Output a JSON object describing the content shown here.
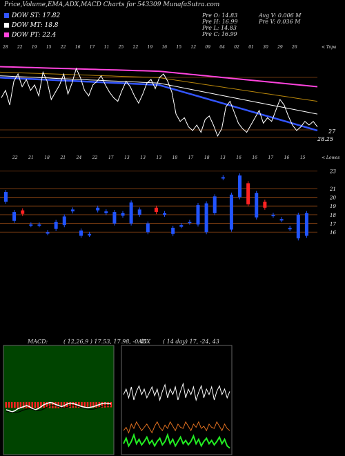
{
  "title": "Price,Volume,EMA,ADX,MACD Charts for 543309 MunafaSutra.com",
  "legend": [
    {
      "label": "DOW ST: 17.82",
      "color": "#3355ff"
    },
    {
      "label": "DOW MT: 18.8",
      "color": "#ffffff"
    },
    {
      "label": "DOW PT: 22.4",
      "color": "#ff44dd"
    }
  ],
  "quote": {
    "prev_open": "Pre   O: 14.83",
    "prev_high": "Pre   H: 16.99",
    "prev_low": "Pre   L: 14.83",
    "prev_close": "Pre   C: 16.99",
    "avg_volume": "Avg V: 0.006   M",
    "prev_volume": "Pre   V: 0.036   M"
  },
  "macd": {
    "label": "MACD:",
    "values": "( 12,26,9 ) 17.53, 17.98, -0.45"
  },
  "adx": {
    "label": "ADX",
    "values": "( 14   day) 17, -24, 43"
  },
  "chart_data": [
    {
      "type": "line",
      "name": "price-ema",
      "price_labels": [
        "27",
        "28.25"
      ],
      "top_tag": "< Topa",
      "top_dates": [
        "28",
        "22",
        "19",
        "15",
        "22",
        "16",
        "17",
        "11",
        "25",
        "22",
        "19",
        "16",
        "15",
        "12",
        "09",
        "04",
        "02",
        "01",
        "30",
        "29",
        "26"
      ],
      "close": [
        26.1,
        26.5,
        25.7,
        27.0,
        27.4,
        26.7,
        27.1,
        26.5,
        26.8,
        26.2,
        27.5,
        27.0,
        26.0,
        26.4,
        26.8,
        27.4,
        26.3,
        26.9,
        27.7,
        27.2,
        26.5,
        26.2,
        26.8,
        27.0,
        27.3,
        26.8,
        26.4,
        26.1,
        25.9,
        26.5,
        27.0,
        26.7,
        26.2,
        25.8,
        26.3,
        26.9,
        27.1,
        26.6,
        27.2,
        27.4,
        27.0,
        26.4,
        25.2,
        24.8,
        25.0,
        24.5,
        24.3,
        24.6,
        24.2,
        24.9,
        25.1,
        24.6,
        24.0,
        24.4,
        25.6,
        25.9,
        25.3,
        24.7,
        24.4,
        24.2,
        24.6,
        25.0,
        25.4,
        24.7,
        25.0,
        24.8,
        25.4,
        26.0,
        25.7,
        25.1,
        24.6,
        24.3,
        24.5,
        24.8,
        24.6,
        24.8,
        24.5
      ],
      "emas": [
        {
          "color": "#ff44dd",
          "values": [
            27.8,
            27.55,
            26.7
          ]
        },
        {
          "color": "#b8860b",
          "values": [
            27.5,
            27.2,
            25.9
          ]
        },
        {
          "color": "#ffffff",
          "values": [
            27.3,
            26.9,
            25.2
          ]
        },
        {
          "color": "#3355ff",
          "values": [
            27.2,
            26.8,
            24.3
          ]
        }
      ]
    },
    {
      "type": "bar",
      "name": "price-candles",
      "bottom_tag": "< Lowes",
      "bottom_dates": [
        "22",
        "21",
        "18",
        "21",
        "24",
        "22",
        "17",
        "13",
        "13",
        "13",
        "18",
        "17",
        "18",
        "13",
        "16",
        "16",
        "17",
        "16",
        "15"
      ],
      "price_levels": [
        23,
        21,
        20,
        19,
        18,
        17,
        16
      ],
      "candles": [
        {
          "o": 20.6,
          "c": 19.5,
          "up": false
        },
        {
          "o": 18.3,
          "c": 17.3,
          "up": false
        },
        {
          "o": 18.5,
          "c": 18.1,
          "up": true
        },
        {
          "o": 16.9,
          "c": 16.8,
          "up": false
        },
        {
          "o": 16.9,
          "c": 16.8,
          "up": false
        },
        {
          "o": 16.0,
          "c": 15.9,
          "up": false
        },
        {
          "o": 17.2,
          "c": 16.4,
          "up": false
        },
        {
          "o": 17.8,
          "c": 16.8,
          "up": false
        },
        {
          "o": 18.6,
          "c": 18.4,
          "up": false
        },
        {
          "o": 16.2,
          "c": 15.6,
          "up": false
        },
        {
          "o": 15.8,
          "c": 15.7,
          "up": false
        },
        {
          "o": 18.8,
          "c": 18.5,
          "up": false
        },
        {
          "o": 18.4,
          "c": 18.2,
          "up": false
        },
        {
          "o": 18.3,
          "c": 17.0,
          "up": false
        },
        {
          "o": 18.2,
          "c": 17.9,
          "up": false
        },
        {
          "o": 19.4,
          "c": 17.0,
          "up": false
        },
        {
          "o": 18.6,
          "c": 18.0,
          "up": false
        },
        {
          "o": 17.0,
          "c": 16.0,
          "up": false
        },
        {
          "o": 18.8,
          "c": 18.3,
          "up": true
        },
        {
          "o": 18.2,
          "c": 18.0,
          "up": false
        },
        {
          "o": 16.5,
          "c": 15.8,
          "up": false
        },
        {
          "o": 16.8,
          "c": 16.7,
          "up": false
        },
        {
          "o": 17.2,
          "c": 17.1,
          "up": false
        },
        {
          "o": 19.1,
          "c": 16.9,
          "up": false
        },
        {
          "o": 19.3,
          "c": 16.0,
          "up": false
        },
        {
          "o": 20.1,
          "c": 18.2,
          "up": false
        },
        {
          "o": 22.3,
          "c": 22.2,
          "up": false
        },
        {
          "o": 20.3,
          "c": 16.3,
          "up": false
        },
        {
          "o": 22.5,
          "c": 20.0,
          "up": false
        },
        {
          "o": 21.6,
          "c": 19.2,
          "up": true
        },
        {
          "o": 20.5,
          "c": 17.7,
          "up": false
        },
        {
          "o": 19.5,
          "c": 18.8,
          "up": true
        },
        {
          "o": 18.0,
          "c": 17.9,
          "up": false
        },
        {
          "o": 17.5,
          "c": 17.4,
          "up": false
        },
        {
          "o": 16.5,
          "c": 16.4,
          "up": false
        },
        {
          "o": 18.0,
          "c": 15.3,
          "up": false
        },
        {
          "o": 18.2,
          "c": 15.6,
          "up": false
        }
      ]
    },
    {
      "type": "line",
      "name": "macd",
      "macd": [
        0.3,
        0.25,
        0.2,
        0.25,
        0.35,
        0.4,
        0.45,
        0.5,
        0.45,
        0.35,
        0.3,
        0.35,
        0.45,
        0.55,
        0.6,
        0.65,
        0.62,
        0.55,
        0.5,
        0.45,
        0.5,
        0.58,
        0.62,
        0.6,
        0.55,
        0.5,
        0.45,
        0.42,
        0.4,
        0.42,
        0.45,
        0.5,
        0.55,
        0.6,
        0.62,
        0.6,
        0.58
      ],
      "signal": [
        0.32,
        0.3,
        0.27,
        0.25,
        0.28,
        0.33,
        0.38,
        0.43,
        0.45,
        0.42,
        0.37,
        0.35,
        0.38,
        0.45,
        0.52,
        0.58,
        0.61,
        0.59,
        0.55,
        0.5,
        0.49,
        0.52,
        0.57,
        0.6,
        0.58,
        0.54,
        0.5,
        0.46,
        0.43,
        0.42,
        0.43,
        0.46,
        0.51,
        0.56,
        0.6,
        0.61,
        0.6
      ],
      "hist": [
        0.8,
        0.8,
        0.85,
        0.85,
        0.85,
        0.9,
        0.9,
        0.9,
        0.9,
        0.9,
        0.88,
        0.85,
        0.85,
        0.85,
        0.85,
        0.88,
        0.9,
        0.9,
        0.9,
        0.88,
        0.85,
        0.85,
        0.85,
        0.82,
        0.8,
        0.82,
        0.82,
        0.82,
        0.8,
        0.8,
        0.8,
        0.8,
        0.8,
        0.78,
        0.78,
        0.75,
        0.75
      ]
    },
    {
      "type": "line",
      "name": "adx",
      "adx": [
        0.55,
        0.6,
        0.52,
        0.62,
        0.5,
        0.58,
        0.63,
        0.55,
        0.6,
        0.52,
        0.57,
        0.62,
        0.54,
        0.6,
        0.5,
        0.58,
        0.64,
        0.52,
        0.6,
        0.55,
        0.62,
        0.5,
        0.58,
        0.65,
        0.52,
        0.6,
        0.55,
        0.62,
        0.5,
        0.57,
        0.63,
        0.52,
        0.6,
        0.55,
        0.62,
        0.5,
        0.58,
        0.63,
        0.55,
        0.6,
        0.52,
        0.58
      ],
      "plus_di": [
        0.1,
        0.15,
        0.08,
        0.12,
        0.18,
        0.1,
        0.14,
        0.09,
        0.12,
        0.16,
        0.1,
        0.13,
        0.08,
        0.12,
        0.15,
        0.09,
        0.12,
        0.18,
        0.1,
        0.14,
        0.08,
        0.12,
        0.16,
        0.1,
        0.13,
        0.09,
        0.12,
        0.17,
        0.1,
        0.14,
        0.08,
        0.12,
        0.15,
        0.1,
        0.13,
        0.09,
        0.12,
        0.16,
        0.1,
        0.14,
        0.08,
        0.06
      ],
      "minus_di": [
        0.22,
        0.25,
        0.2,
        0.28,
        0.24,
        0.3,
        0.26,
        0.22,
        0.25,
        0.28,
        0.24,
        0.2,
        0.26,
        0.3,
        0.25,
        0.22,
        0.27,
        0.24,
        0.3,
        0.26,
        0.22,
        0.28,
        0.25,
        0.24,
        0.3,
        0.26,
        0.22,
        0.28,
        0.25,
        0.3,
        0.24,
        0.26,
        0.22,
        0.28,
        0.25,
        0.24,
        0.3,
        0.26,
        0.22,
        0.28,
        0.24,
        0.22
      ]
    }
  ]
}
